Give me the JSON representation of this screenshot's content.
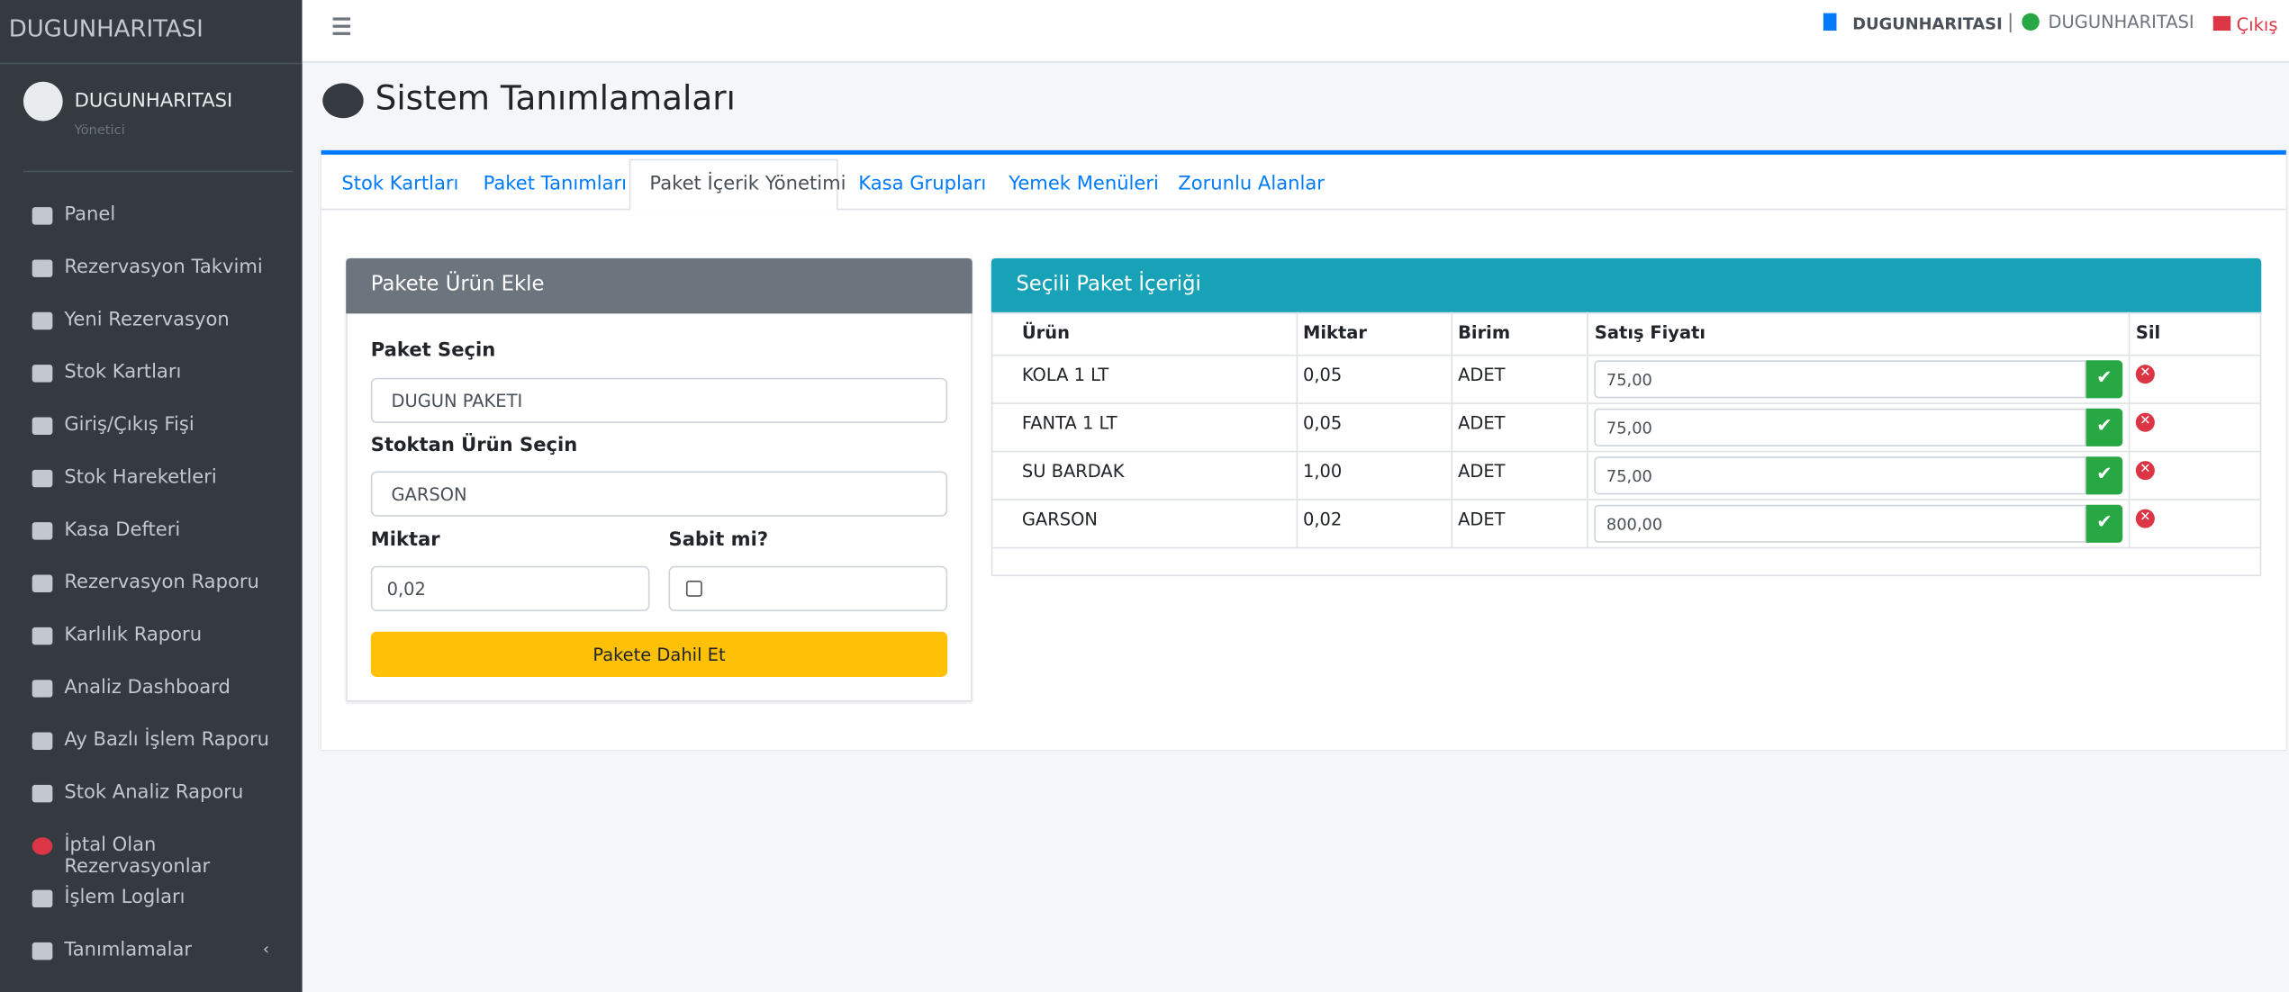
{
  "sidebar": {
    "brand": "DUGUNHARITASI",
    "user": {
      "name": "DUGUNHARITASI",
      "role": "Yönetici"
    },
    "menu": [
      "Panel",
      "Rezervasyon Takvimi",
      "Yeni Rezervasyon",
      "Stok Kartları",
      "Giriş/Çıkış Fişi",
      "Stok Hareketleri",
      "Kasa Defteri",
      "Rezervasyon Raporu",
      "Karlılık Raporu",
      "Analiz Dashboard",
      "Ay Bazlı İşlem Raporu",
      "Stok Analiz Raporu",
      "İptal Olan Rezervasyonlar",
      "İşlem Logları",
      "Tanımlamalar"
    ]
  },
  "header": {
    "company": "DUGUNHARITASI",
    "user": "DUGUNHARITASI",
    "logout": "Çıkış"
  },
  "page": {
    "title": "Sistem Tanımlamaları",
    "tabs": [
      "Stok Kartları",
      "Paket Tanımları",
      "Paket İçerik Yönetimi",
      "Kasa Grupları",
      "Yemek Menüleri",
      "Zorunlu Alanlar"
    ],
    "form": {
      "title": "Pakete Ürün Ekle",
      "package_label": "Paket Seçin",
      "package_value": "DUGUN PAKETI",
      "product_label": "Stoktan Ürün Seçin",
      "product_value": "GARSON",
      "quantity_label": "Miktar",
      "quantity_value": "0,02",
      "fixed_label": "Sabit mi?",
      "button": "Pakete Dahil Et"
    },
    "table": {
      "title": "Seçili Paket İçeriği",
      "columns": [
        "Ürün",
        "Miktar",
        "Birim",
        "Satış Fiyatı",
        "Sil"
      ],
      "rows": [
        [
          "KOLA 1 LT",
          "0,05",
          "ADET",
          "75,00"
        ],
        [
          "FANTA 1 LT",
          "0,05",
          "ADET",
          "75,00"
        ],
        [
          "SU BARDAK",
          "1,00",
          "ADET",
          "75,00"
        ],
        [
          "GARSON",
          "0,02",
          "ADET",
          "800,00"
        ]
      ]
    }
  }
}
